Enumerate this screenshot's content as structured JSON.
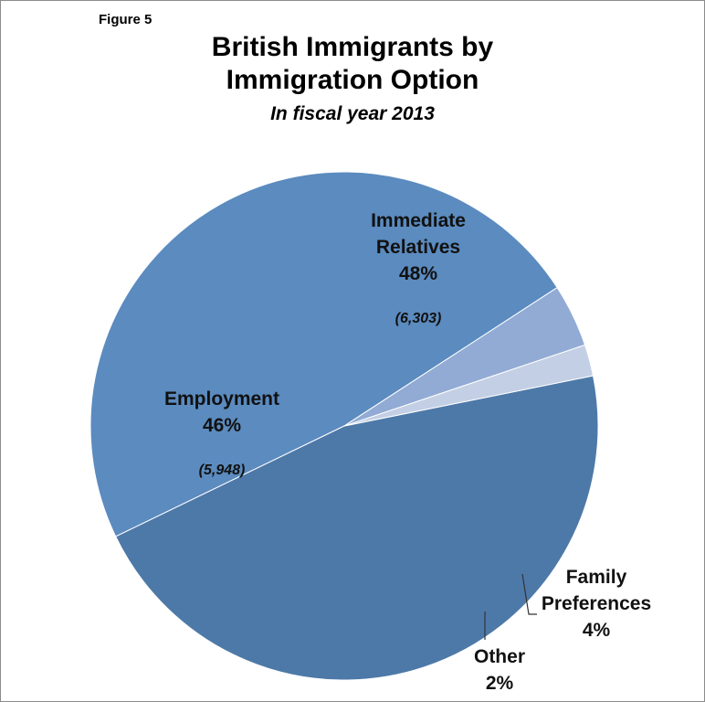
{
  "figure_label": "Figure 5",
  "chart_data": {
    "type": "pie",
    "title": [
      "British Immigrants by",
      "Immigration Option"
    ],
    "subtitle": "In fiscal year 2013",
    "start_angle_deg": 33,
    "direction": "counterclockwise",
    "colors": {
      "immediate": "#5b8bbf",
      "employment": "#4d79a8",
      "other": "#c3cfe4",
      "family": "#91abd5"
    },
    "slices": [
      {
        "key": "immediate",
        "name_lines": [
          "Immediate",
          "Relatives"
        ],
        "percent_label": "48%",
        "count_label": "(6,303)",
        "value": 48
      },
      {
        "key": "employment",
        "name_lines": [
          "Employment"
        ],
        "percent_label": "46%",
        "count_label": "(5,948)",
        "value": 46
      },
      {
        "key": "other",
        "name_lines": [
          "Other"
        ],
        "percent_label": "2%",
        "count_label": "",
        "value": 2
      },
      {
        "key": "family",
        "name_lines": [
          "Family",
          "Preferences"
        ],
        "percent_label": "4%",
        "count_label": "",
        "value": 4
      }
    ]
  }
}
